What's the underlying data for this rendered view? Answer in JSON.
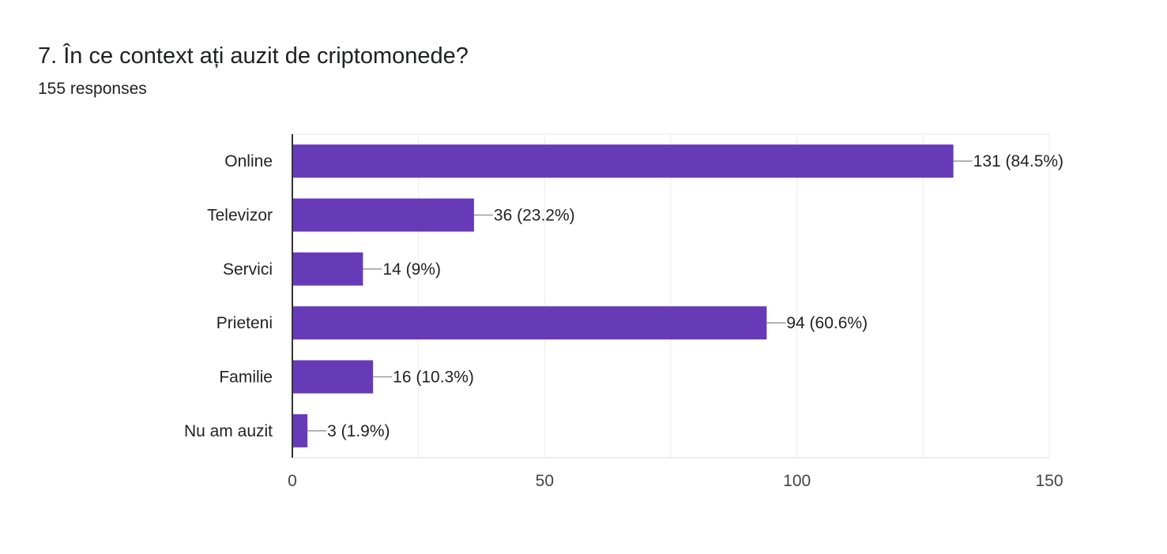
{
  "question": {
    "title": "7. În ce context ați auzit de criptomonede?",
    "responses": "155 responses"
  },
  "colors": {
    "bar": "#673ab7",
    "grid": "#ebebeb",
    "axis": "#333333",
    "leader": "#999999"
  },
  "chart_data": {
    "type": "bar",
    "orientation": "horizontal",
    "title": "7. În ce context ați auzit de criptomonede?",
    "subtitle": "155 responses",
    "categories": [
      "Online",
      "Televizor",
      "Servici",
      "Prieteni",
      "Familie",
      "Nu am auzit"
    ],
    "values": [
      131,
      36,
      14,
      94,
      16,
      3
    ],
    "data_labels": [
      "131 (84.5%)",
      "36 (23.2%)",
      "14 (9%)",
      "94 (60.6%)",
      "16 (10.3%)",
      "3 (1.9%)"
    ],
    "xlim": [
      0,
      150
    ],
    "xticks": [
      0,
      50,
      100,
      150
    ],
    "xlabel": "",
    "ylabel": "",
    "grid": true,
    "legend": "none"
  }
}
